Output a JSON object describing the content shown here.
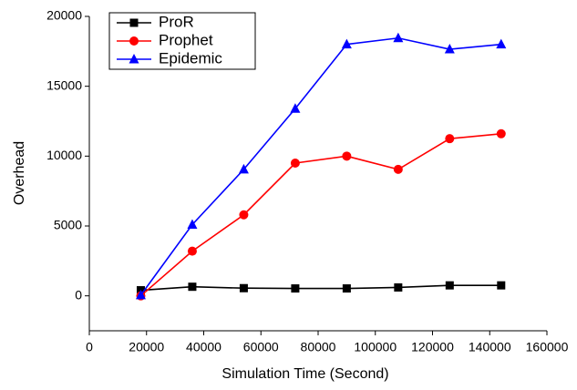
{
  "chart_data": {
    "type": "line",
    "x_label": "Simulation Time (Second)",
    "y_label": "Overhead",
    "x": [
      18000,
      36000,
      54000,
      72000,
      90000,
      108000,
      126000,
      144000
    ],
    "series": [
      {
        "name": "ProR",
        "color": "#000000",
        "marker": "square",
        "values": [
          400,
          650,
          550,
          530,
          530,
          600,
          750,
          750
        ]
      },
      {
        "name": "Prophet",
        "color": "#ff0000",
        "marker": "circle",
        "values": [
          0,
          3200,
          5800,
          9500,
          10000,
          9050,
          11250,
          11600
        ]
      },
      {
        "name": "Epidemic",
        "color": "#0000ff",
        "marker": "triangle",
        "values": [
          50,
          5100,
          9050,
          13400,
          18000,
          18450,
          17650,
          18000
        ]
      }
    ],
    "xlim": [
      0,
      160000
    ],
    "ylim": [
      -2500,
      20000
    ],
    "xticks": [
      0,
      20000,
      40000,
      60000,
      80000,
      100000,
      120000,
      140000,
      160000
    ],
    "yticks": [
      0,
      5000,
      10000,
      15000,
      20000
    ],
    "legend": "upper-left"
  }
}
